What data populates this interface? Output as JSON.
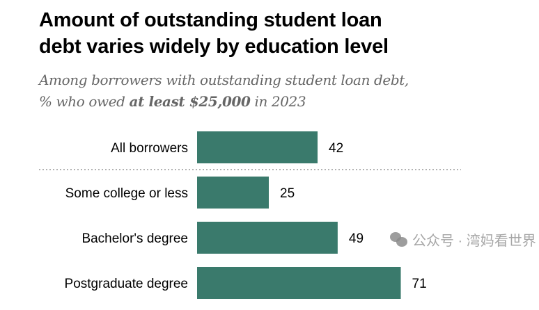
{
  "title_lines": [
    "Amount of outstanding student loan",
    "debt varies widely by education level"
  ],
  "subtitle": {
    "line1": "Among borrowers with outstanding student loan debt,",
    "line2_pre": "% who owed ",
    "line2_bold": "at least $25,000",
    "line2_post": " in 2023"
  },
  "chart_data": {
    "type": "bar",
    "orientation": "horizontal",
    "categories": [
      "All borrowers",
      "Some college or less",
      "Bachelor's degree",
      "Postgraduate degree"
    ],
    "values": [
      42,
      25,
      49,
      71
    ],
    "xlim": [
      0,
      100
    ],
    "grid": false,
    "bar_color": "#3a7a6c",
    "separator_after_index": 0
  },
  "watermark": {
    "text": "公众号 · 湾妈看世界",
    "icon": "wechat-icon"
  }
}
